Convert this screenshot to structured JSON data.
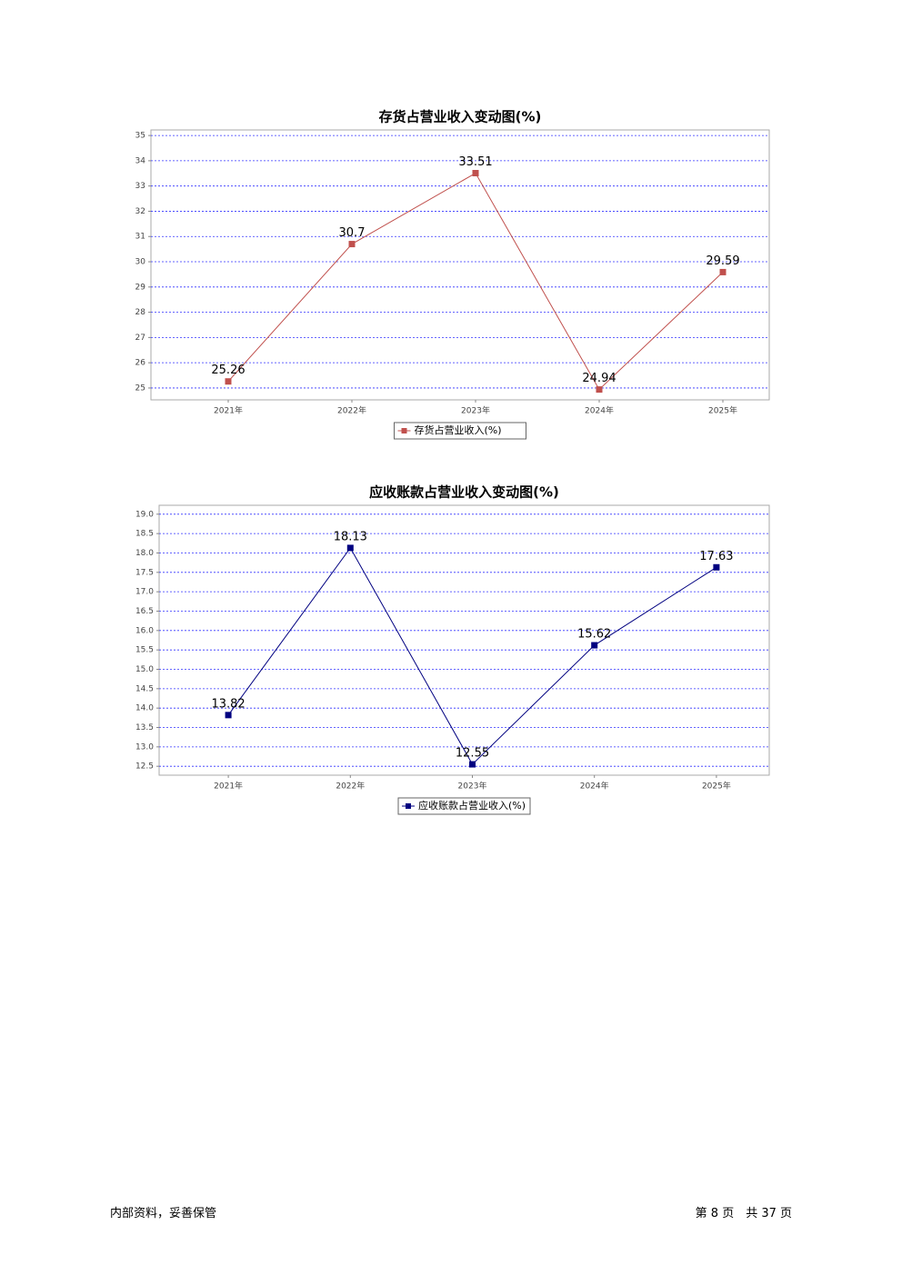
{
  "chart_data": [
    {
      "type": "line",
      "title": "存货占营业收入变动图(%)",
      "categories": [
        "2021年",
        "2022年",
        "2023年",
        "2024年",
        "2025年"
      ],
      "series": [
        {
          "name": "存货占营业收入(%)",
          "color": "#c0504d",
          "values": [
            25.26,
            30.7,
            33.51,
            24.94,
            29.59
          ]
        }
      ],
      "ylim": [
        24.53,
        35.22
      ],
      "yticks": [
        25,
        26,
        27,
        28,
        29,
        30,
        31,
        32,
        33,
        34,
        35
      ],
      "grid": true,
      "legend": "bottom"
    },
    {
      "type": "line",
      "title": "应收账款占营业收入变动图(%)",
      "categories": [
        "2021年",
        "2022年",
        "2023年",
        "2024年",
        "2025年"
      ],
      "series": [
        {
          "name": "应收账款占营业收入(%)",
          "color": "#000080",
          "values": [
            13.82,
            18.13,
            12.55,
            15.62,
            17.63
          ]
        }
      ],
      "ylim": [
        12.27,
        19.23
      ],
      "yticks": [
        12.5,
        {
          "value": 13,
          "label": "13.0"
        },
        13.5,
        {
          "value": 14,
          "label": "14.0"
        },
        14.5,
        {
          "value": 15,
          "label": "15.0"
        },
        15.5,
        {
          "value": 16,
          "label": "16.0"
        },
        16.5,
        {
          "value": 17,
          "label": "17.0"
        },
        17.5,
        {
          "value": 18,
          "label": "18.0"
        },
        18.5,
        {
          "value": 19,
          "label": "19.0"
        }
      ],
      "grid": true,
      "legend": "bottom"
    }
  ],
  "footer": {
    "left": "内部资料，妥善保管",
    "right": "第 8 页　共 37 页"
  }
}
